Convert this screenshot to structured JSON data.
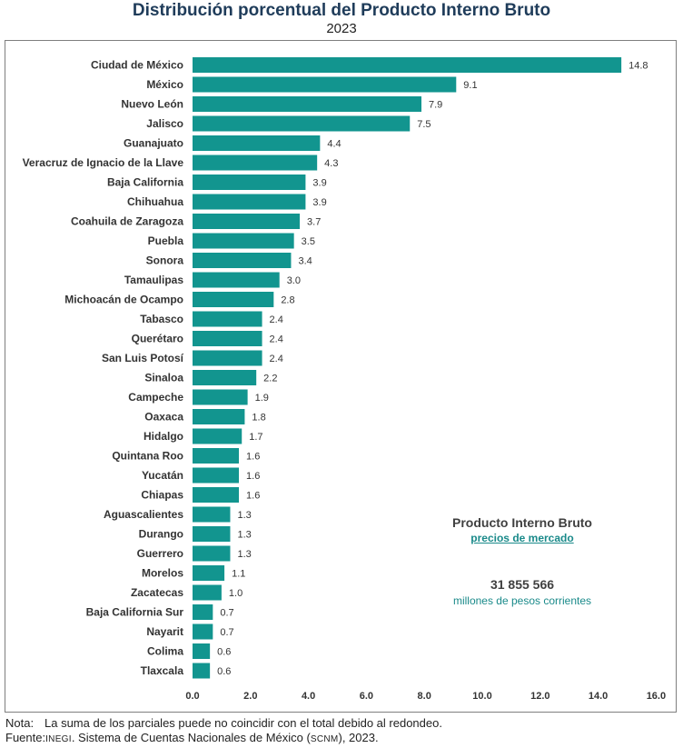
{
  "chart_data": {
    "type": "bar",
    "orientation": "horizontal",
    "title": "Distribución porcentual del Producto Interno Bruto",
    "subtitle": "2023",
    "categories": [
      "Ciudad de México",
      "México",
      "Nuevo León",
      "Jalisco",
      "Guanajuato",
      "Veracruz de Ignacio de la Llave",
      "Baja California",
      "Chihuahua",
      "Coahuila de Zaragoza",
      "Puebla",
      "Sonora",
      "Tamaulipas",
      "Michoacán de Ocampo",
      "Tabasco",
      "Querétaro",
      "San Luis Potosí",
      "Sinaloa",
      "Campeche",
      "Oaxaca",
      "Hidalgo",
      "Quintana Roo",
      "Yucatán",
      "Chiapas",
      "Aguascalientes",
      "Durango",
      "Guerrero",
      "Morelos",
      "Zacatecas",
      "Baja California Sur",
      "Nayarit",
      "Colima",
      "Tlaxcala"
    ],
    "values": [
      14.8,
      9.1,
      7.9,
      7.5,
      4.4,
      4.3,
      3.9,
      3.9,
      3.7,
      3.5,
      3.4,
      3.0,
      2.8,
      2.4,
      2.4,
      2.4,
      2.2,
      1.9,
      1.8,
      1.7,
      1.6,
      1.6,
      1.6,
      1.3,
      1.3,
      1.3,
      1.1,
      1.0,
      0.7,
      0.7,
      0.6,
      0.6
    ],
    "value_labels": [
      "14.8",
      "9.1",
      "7.9",
      "7.5",
      "4.4",
      "4.3",
      "3.9",
      "3.9",
      "3.7",
      "3.5",
      "3.4",
      "3.0",
      "2.8",
      "2.4",
      "2.4",
      "2.4",
      "2.2",
      "1.9",
      "1.8",
      "1.7",
      "1.6",
      "1.6",
      "1.6",
      "1.3",
      "1.3",
      "1.3",
      "1.1",
      "1.0",
      "0.7",
      "0.7",
      "0.6",
      "0.6"
    ],
    "xlim": [
      0,
      16
    ],
    "xticks": [
      "0.0",
      "2.0",
      "4.0",
      "6.0",
      "8.0",
      "10.0",
      "12.0",
      "14.0",
      "16.0"
    ],
    "xtick_values": [
      0,
      2,
      4,
      6,
      8,
      10,
      12,
      14,
      16
    ],
    "grid": false,
    "bar_color": "#12958f",
    "annotation": {
      "title": "Producto Interno Bruto",
      "subtitle": "precios de mercado",
      "value": "31 855 566",
      "unit": "millones de pesos corrientes"
    }
  },
  "footer": {
    "note_label": "Nota:",
    "note_text": "La suma de los parciales puede no coincidir con el total debido al redondeo.",
    "source_label": "Fuente:",
    "source_org": "INEGI",
    "source_mid": ". Sistema de Cuentas Nacionales de México (",
    "source_abbr": "SCNM",
    "source_end": "), 2023."
  },
  "colors": {
    "title": "#1f3c5a",
    "accent": "#1a8a8a"
  }
}
